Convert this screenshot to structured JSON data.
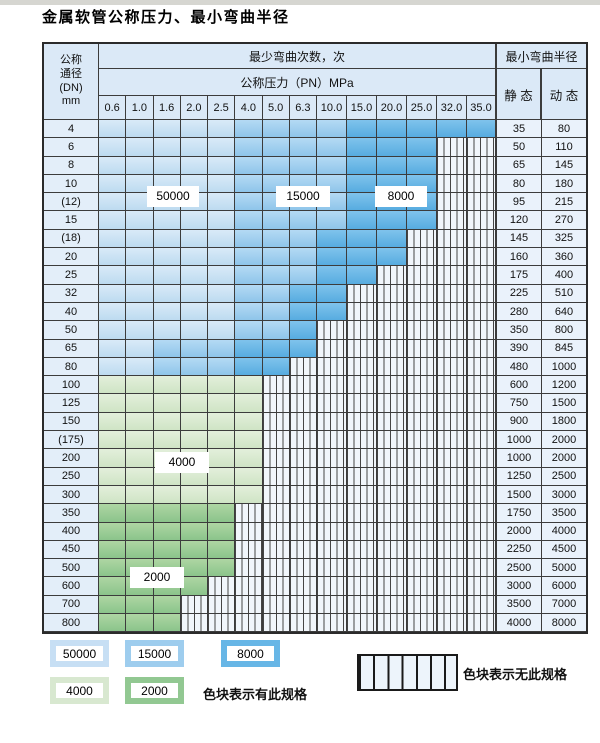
{
  "title": "金属软管公称压力、最小弯曲半径",
  "header": {
    "dn_lines": [
      "公称",
      "通径",
      "(DN)",
      "mm"
    ],
    "bend_cycles": "最少弯曲次数，次",
    "pn": "公称压力（PN）MPa",
    "bend_radius": "最小弯曲半径",
    "static_label": "静 态",
    "dynamic_label": "动 态"
  },
  "pressures": [
    "0.6",
    "1.0",
    "1.6",
    "2.0",
    "2.5",
    "4.0",
    "5.0",
    "6.3",
    "10.0",
    "15.0",
    "20.0",
    "25.0",
    "32.0",
    "35.0"
  ],
  "cycle_values": {
    "v50000": "50000",
    "v15000": "15000",
    "v8000": "8000",
    "v4000": "4000",
    "v2000": "2000"
  },
  "rows": [
    {
      "dn": "4",
      "static": "35",
      "dynamic": "80",
      "bands": {
        "c50": 5,
        "c15": 4,
        "c8": 5,
        "hatch": 0
      }
    },
    {
      "dn": "6",
      "static": "50",
      "dynamic": "110",
      "bands": {
        "c50": 5,
        "c15": 4,
        "c8": 3,
        "hatch": 2
      }
    },
    {
      "dn": "8",
      "static": "65",
      "dynamic": "145",
      "bands": {
        "c50": 5,
        "c15": 4,
        "c8": 3,
        "hatch": 2
      }
    },
    {
      "dn": "10",
      "static": "80",
      "dynamic": "180",
      "bands": {
        "c50": 5,
        "c15": 4,
        "c8": 3,
        "hatch": 2
      }
    },
    {
      "dn": "(12)",
      "static": "95",
      "dynamic": "215",
      "bands": {
        "c50": 5,
        "c15": 4,
        "c8": 3,
        "hatch": 2
      }
    },
    {
      "dn": "15",
      "static": "120",
      "dynamic": "270",
      "bands": {
        "c50": 5,
        "c15": 4,
        "c8": 3,
        "hatch": 2
      }
    },
    {
      "dn": "(18)",
      "static": "145",
      "dynamic": "325",
      "bands": {
        "c50": 5,
        "c15": 3,
        "c8": 3,
        "hatch": 3
      }
    },
    {
      "dn": "20",
      "static": "160",
      "dynamic": "360",
      "bands": {
        "c50": 5,
        "c15": 3,
        "c8": 3,
        "hatch": 3
      }
    },
    {
      "dn": "25",
      "static": "175",
      "dynamic": "400",
      "bands": {
        "c50": 5,
        "c15": 3,
        "c8": 2,
        "hatch": 4
      }
    },
    {
      "dn": "32",
      "static": "225",
      "dynamic": "510",
      "bands": {
        "c50": 5,
        "c15": 2,
        "c8": 2,
        "hatch": 5
      }
    },
    {
      "dn": "40",
      "static": "280",
      "dynamic": "640",
      "bands": {
        "c50": 5,
        "c15": 2,
        "c8": 2,
        "hatch": 5
      }
    },
    {
      "dn": "50",
      "static": "350",
      "dynamic": "800",
      "bands": {
        "c50": 5,
        "c15": 2,
        "c8": 1,
        "hatch": 6
      }
    },
    {
      "dn": "65",
      "static": "390",
      "dynamic": "845",
      "bands": {
        "c50": 2,
        "c15": 3,
        "c8": 3,
        "hatch": 6
      }
    },
    {
      "dn": "80",
      "static": "480",
      "dynamic": "1000",
      "bands": {
        "c50": 2,
        "c15": 3,
        "c8": 2,
        "hatch": 7
      }
    },
    {
      "dn": "100",
      "static": "600",
      "dynamic": "1200",
      "bands": {
        "c4": 6,
        "hatch": 8
      }
    },
    {
      "dn": "125",
      "static": "750",
      "dynamic": "1500",
      "bands": {
        "c4": 6,
        "hatch": 8
      }
    },
    {
      "dn": "150",
      "static": "900",
      "dynamic": "1800",
      "bands": {
        "c4": 6,
        "hatch": 8
      }
    },
    {
      "dn": "(175)",
      "static": "1000",
      "dynamic": "2000",
      "bands": {
        "c4": 6,
        "hatch": 8
      }
    },
    {
      "dn": "200",
      "static": "1000",
      "dynamic": "2000",
      "bands": {
        "c4": 6,
        "hatch": 8
      }
    },
    {
      "dn": "250",
      "static": "1250",
      "dynamic": "2500",
      "bands": {
        "c4": 6,
        "hatch": 8
      }
    },
    {
      "dn": "300",
      "static": "1500",
      "dynamic": "3000",
      "bands": {
        "c4": 6,
        "hatch": 8
      }
    },
    {
      "dn": "350",
      "static": "1750",
      "dynamic": "3500",
      "bands": {
        "c2": 5,
        "hatch": 9
      }
    },
    {
      "dn": "400",
      "static": "2000",
      "dynamic": "4000",
      "bands": {
        "c2": 5,
        "hatch": 9
      }
    },
    {
      "dn": "450",
      "static": "2250",
      "dynamic": "4500",
      "bands": {
        "c2": 5,
        "hatch": 9
      }
    },
    {
      "dn": "500",
      "static": "2500",
      "dynamic": "5000",
      "bands": {
        "c2": 5,
        "hatch": 9
      }
    },
    {
      "dn": "600",
      "static": "3000",
      "dynamic": "6000",
      "bands": {
        "c2": 4,
        "hatch": 10
      }
    },
    {
      "dn": "700",
      "static": "3500",
      "dynamic": "7000",
      "bands": {
        "c2": 3,
        "hatch": 11
      }
    },
    {
      "dn": "800",
      "static": "4000",
      "dynamic": "8000",
      "bands": {
        "c2": 3,
        "hatch": 11
      }
    }
  ],
  "legend": {
    "present_text": "色块表示有此规格",
    "absent_text": "色块表示无此规格"
  }
}
